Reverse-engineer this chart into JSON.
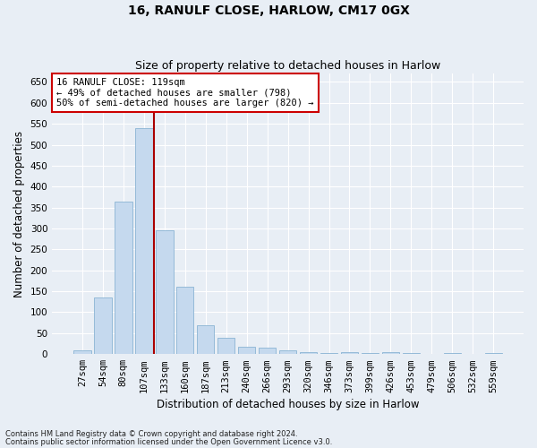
{
  "title1": "16, RANULF CLOSE, HARLOW, CM17 0GX",
  "title2": "Size of property relative to detached houses in Harlow",
  "xlabel": "Distribution of detached houses by size in Harlow",
  "ylabel": "Number of detached properties",
  "categories": [
    "27sqm",
    "54sqm",
    "80sqm",
    "107sqm",
    "133sqm",
    "160sqm",
    "187sqm",
    "213sqm",
    "240sqm",
    "266sqm",
    "293sqm",
    "320sqm",
    "346sqm",
    "373sqm",
    "399sqm",
    "426sqm",
    "453sqm",
    "479sqm",
    "506sqm",
    "532sqm",
    "559sqm"
  ],
  "values": [
    10,
    135,
    365,
    540,
    295,
    160,
    68,
    38,
    18,
    15,
    10,
    5,
    3,
    4,
    3,
    5,
    3,
    0,
    3,
    0,
    3
  ],
  "bar_color": "#c5d9ee",
  "bar_edge_color": "#8ab4d4",
  "vline_x": 3.5,
  "vline_color": "#aa0000",
  "ylim": [
    0,
    670
  ],
  "yticks": [
    0,
    50,
    100,
    150,
    200,
    250,
    300,
    350,
    400,
    450,
    500,
    550,
    600,
    650
  ],
  "annotation_text": "16 RANULF CLOSE: 119sqm\n← 49% of detached houses are smaller (798)\n50% of semi-detached houses are larger (820) →",
  "footnote1": "Contains HM Land Registry data © Crown copyright and database right 2024.",
  "footnote2": "Contains public sector information licensed under the Open Government Licence v3.0.",
  "bg_color": "#e8eef5",
  "grid_color": "#ffffff",
  "title1_fontsize": 10,
  "title2_fontsize": 9,
  "xlabel_fontsize": 8.5,
  "ylabel_fontsize": 8.5,
  "tick_fontsize": 7.5,
  "annot_fontsize": 7.5,
  "footnote_fontsize": 6.0
}
